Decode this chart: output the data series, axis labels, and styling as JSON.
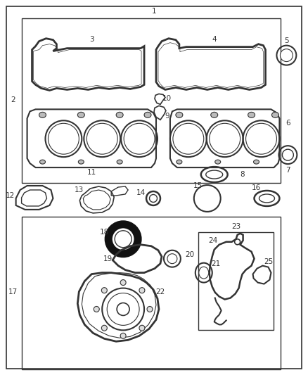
{
  "background_color": "#ffffff",
  "line_color": "#333333",
  "text_color": "#333333",
  "font_size": 7.5,
  "fig_w": 4.38,
  "fig_h": 5.33,
  "dpi": 100
}
